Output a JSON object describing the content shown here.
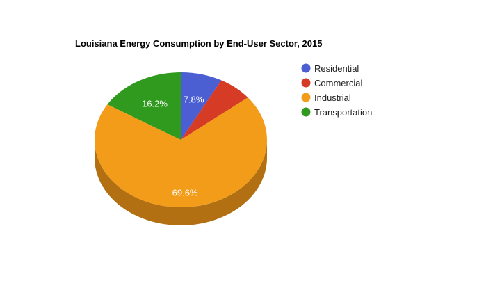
{
  "chart_data": {
    "type": "pie",
    "title": "Louisiana Energy Consumption by End-User Sector, 2015",
    "style": "3d",
    "legend_position": "right",
    "slices": [
      {
        "name": "Residential",
        "value": 7.8,
        "color": "#4c5fd2",
        "side_color": "#36449a",
        "label": "7.8%"
      },
      {
        "name": "Commercial",
        "value": 6.4,
        "color": "#d63b25",
        "side_color": "#9a2a1a",
        "label": ""
      },
      {
        "name": "Industrial",
        "value": 69.6,
        "color": "#f39c19",
        "side_color": "#b27013",
        "label": "69.6%"
      },
      {
        "name": "Transportation",
        "value": 16.2,
        "color": "#2f9a1d",
        "side_color": "#226f15",
        "label": "16.2%"
      }
    ]
  }
}
